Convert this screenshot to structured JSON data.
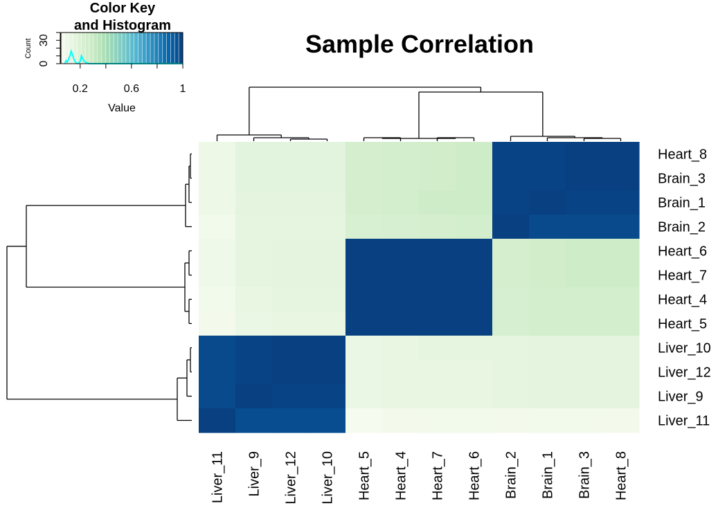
{
  "chart_data": {
    "type": "heatmap",
    "title": "Sample Correlation",
    "rows": [
      "Heart_8",
      "Brain_3",
      "Brain_1",
      "Brain_2",
      "Heart_6",
      "Heart_7",
      "Heart_4",
      "Heart_5",
      "Liver_10",
      "Liver_12",
      "Liver_9",
      "Liver_11"
    ],
    "columns": [
      "Liver_11",
      "Liver_9",
      "Liver_12",
      "Liver_10",
      "Heart_5",
      "Heart_4",
      "Heart_7",
      "Heart_6",
      "Brain_2",
      "Brain_1",
      "Brain_3",
      "Heart_8"
    ],
    "values": [
      [
        0.1,
        0.16,
        0.16,
        0.16,
        0.24,
        0.25,
        0.26,
        0.27,
        0.99,
        0.99,
        1.0,
        1.0
      ],
      [
        0.1,
        0.16,
        0.16,
        0.16,
        0.24,
        0.25,
        0.26,
        0.27,
        0.99,
        0.99,
        1.0,
        1.0
      ],
      [
        0.1,
        0.15,
        0.15,
        0.15,
        0.24,
        0.25,
        0.27,
        0.27,
        0.99,
        1.0,
        0.99,
        0.99
      ],
      [
        0.08,
        0.14,
        0.14,
        0.14,
        0.22,
        0.23,
        0.24,
        0.25,
        1.0,
        0.97,
        0.97,
        0.97
      ],
      [
        0.09,
        0.14,
        0.15,
        0.15,
        1.0,
        1.0,
        1.0,
        1.0,
        0.24,
        0.26,
        0.27,
        0.27
      ],
      [
        0.09,
        0.14,
        0.15,
        0.15,
        1.0,
        1.0,
        1.0,
        1.0,
        0.24,
        0.26,
        0.27,
        0.27
      ],
      [
        0.08,
        0.13,
        0.14,
        0.14,
        1.0,
        1.0,
        1.0,
        1.0,
        0.23,
        0.25,
        0.25,
        0.25
      ],
      [
        0.07,
        0.12,
        0.13,
        0.13,
        1.0,
        1.0,
        1.0,
        1.0,
        0.23,
        0.25,
        0.25,
        0.25
      ],
      [
        0.97,
        0.99,
        1.0,
        1.0,
        0.12,
        0.13,
        0.14,
        0.14,
        0.14,
        0.15,
        0.15,
        0.15
      ],
      [
        0.97,
        0.99,
        1.0,
        1.0,
        0.12,
        0.13,
        0.13,
        0.13,
        0.14,
        0.15,
        0.15,
        0.15
      ],
      [
        0.97,
        1.0,
        0.99,
        0.99,
        0.12,
        0.13,
        0.13,
        0.13,
        0.14,
        0.15,
        0.15,
        0.15
      ],
      [
        1.0,
        0.96,
        0.96,
        0.96,
        0.06,
        0.07,
        0.08,
        0.08,
        0.07,
        0.08,
        0.08,
        0.07
      ]
    ],
    "row_dendrogram": true,
    "column_dendrogram": true,
    "colors": [
      "#f7fcf0",
      "#e0f3db",
      "#ccebc5",
      "#a8ddb5",
      "#7bccc4",
      "#4eb3d3",
      "#2b8cbe",
      "#0868ac",
      "#084081"
    ],
    "color_key": {
      "title_line1": "Color Key",
      "title_line2": "and Histogram",
      "xlabel": "Value",
      "ylabel": "Count",
      "x_ticks": [
        "0.2",
        "0.6",
        "1"
      ],
      "y_ticks": [
        "0",
        "30"
      ],
      "x_range": [
        0.05,
        1.0
      ],
      "y_range": [
        0,
        40
      ],
      "histogram_color": "#00ffff",
      "histogram_x": [
        0.08,
        0.09,
        0.1,
        0.11,
        0.12,
        0.13,
        0.14,
        0.15,
        0.16,
        0.17,
        0.18,
        0.19,
        0.2,
        0.21,
        0.22,
        0.23,
        0.24,
        0.25,
        0.26,
        0.27,
        0.28,
        0.3,
        1.0
      ],
      "histogram_counts": [
        0,
        4,
        2,
        6,
        10,
        16,
        12,
        6,
        3,
        1,
        0,
        1,
        3,
        10,
        6,
        4,
        2,
        1,
        1,
        0,
        0,
        0,
        0
      ]
    }
  }
}
